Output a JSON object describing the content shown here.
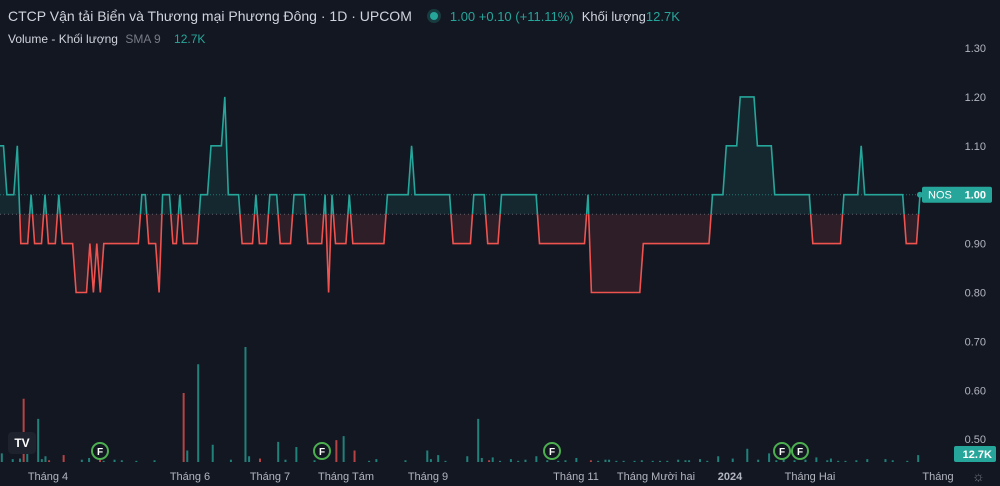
{
  "header": {
    "title": "CTCP Vận tải Biển và Thương mại Phương Đông · 1D · UPCOM",
    "price_change": "1.00 +0.10 (+11.11%)",
    "volume_label": "Khối lượng",
    "volume_value": "12.7K"
  },
  "volume_legend": {
    "name": "Volume - Khối lượng",
    "sma": "SMA 9",
    "value": "12.7K"
  },
  "price_tag": {
    "symbol": "NOS",
    "value": "1.00"
  },
  "volume_tag": "12.7K",
  "logo_text": "TV",
  "colors": {
    "up": "#26a69a",
    "down": "#ef5350",
    "background": "#131722",
    "grid": "#1e222d"
  },
  "chart_data": {
    "type": "line",
    "baseline": 0.96,
    "yticks": [
      "1.30",
      "1.20",
      "1.10",
      "1.00",
      "0.90",
      "0.80",
      "0.70",
      "0.60",
      "0.50"
    ],
    "ylim": [
      0.48,
      1.31
    ],
    "xlabels": [
      "Tháng 4",
      "Tháng 6",
      "Tháng 7",
      "Tháng Tám",
      "Tháng 9",
      "Tháng 11",
      "Tháng Mười hai",
      "2024",
      "Tháng Hai",
      "Tháng"
    ],
    "price": [
      1.1,
      1.1,
      1.0,
      1.0,
      1.0,
      1.1,
      0.9,
      0.9,
      0.9,
      1.0,
      0.9,
      0.9,
      0.9,
      1.0,
      0.9,
      0.9,
      0.9,
      1.0,
      0.9,
      0.9,
      0.9,
      0.9,
      0.8,
      0.8,
      0.8,
      0.8,
      0.9,
      0.8,
      0.9,
      0.8,
      0.9,
      0.9,
      0.9,
      0.9,
      0.9,
      0.9,
      0.9,
      0.9,
      0.9,
      0.9,
      0.9,
      1.0,
      1.0,
      0.9,
      0.9,
      0.9,
      0.8,
      1.0,
      1.0,
      1.0,
      0.9,
      0.9,
      1.0,
      0.9,
      0.9,
      0.9,
      0.9,
      0.9,
      1.0,
      1.0,
      1.0,
      1.1,
      1.1,
      1.1,
      1.1,
      1.2,
      1.0,
      1.0,
      1.0,
      1.0,
      0.9,
      0.9,
      0.9,
      0.9,
      1.0,
      0.9,
      0.9,
      0.9,
      1.0,
      1.0,
      1.0,
      0.9,
      0.9,
      0.9,
      0.9,
      1.0,
      1.0,
      1.0,
      1.0,
      0.9,
      0.9,
      0.9,
      0.9,
      0.9,
      1.0,
      0.8,
      1.0,
      0.9,
      0.9,
      0.9,
      0.9,
      1.0,
      0.9,
      0.9,
      0.9,
      0.9,
      0.9,
      0.9,
      0.9,
      0.9,
      0.9,
      0.9,
      1.0,
      1.0,
      1.0,
      1.0,
      1.0,
      1.0,
      1.0,
      1.1,
      1.0,
      1.0,
      1.0,
      1.0,
      1.0,
      1.0,
      1.0,
      1.0,
      1.0,
      1.0,
      1.0,
      0.9,
      0.9,
      0.9,
      0.9,
      0.9,
      0.9,
      1.0,
      1.0,
      1.0,
      1.0,
      0.9,
      0.9,
      0.9,
      0.9,
      1.0,
      1.0,
      1.0,
      1.0,
      1.0,
      1.0,
      1.0,
      1.0,
      1.0,
      1.0,
      1.0,
      0.9,
      0.9,
      0.9,
      0.9,
      0.9,
      0.9,
      0.9,
      0.9,
      0.9,
      0.9,
      0.9,
      0.9,
      0.9,
      0.9,
      1.0,
      0.8,
      0.8,
      0.8,
      0.8,
      0.8,
      0.8,
      0.8,
      0.8,
      0.8,
      0.8,
      0.8,
      0.8,
      0.8,
      0.8,
      0.8,
      0.9,
      0.9,
      0.9,
      0.9,
      0.9,
      0.9,
      0.9,
      0.9,
      0.9,
      0.9,
      0.9,
      0.9,
      0.9,
      0.9,
      0.9,
      0.9,
      0.9,
      0.9,
      0.9,
      0.9,
      1.0,
      1.0,
      1.0,
      1.0,
      1.1,
      1.1,
      1.1,
      1.1,
      1.2,
      1.2,
      1.2,
      1.2,
      1.2,
      1.1,
      1.1,
      1.1,
      1.1,
      1.1,
      1.0,
      1.0,
      1.0,
      1.0,
      1.0,
      1.0,
      1.0,
      1.0,
      1.0,
      1.0,
      1.0,
      0.9,
      0.9,
      0.9,
      0.9,
      0.9,
      0.9,
      0.9,
      0.9,
      0.9,
      1.0,
      1.0,
      1.0,
      1.0,
      1.0,
      1.1,
      1.0,
      1.0,
      1.0,
      1.0,
      1.0,
      1.0,
      1.0,
      1.0,
      1.0,
      1.0,
      1.0,
      1.0,
      0.9,
      0.9,
      0.9,
      0.9,
      1.0
    ],
    "volume": [
      1.5,
      0,
      0,
      0.5,
      0,
      0.6,
      11,
      2,
      0,
      0,
      7.5,
      0.5,
      1,
      0.3,
      0,
      0,
      0,
      1.2,
      0,
      0,
      0,
      0,
      0.4,
      0,
      0.7,
      0,
      0,
      0.8,
      0.2,
      0,
      0,
      0.4,
      0,
      0.3,
      0,
      0,
      0,
      0.2,
      0,
      0,
      0,
      0,
      0.3,
      0,
      0,
      0,
      0,
      0,
      0,
      0,
      12,
      2,
      0,
      0,
      17,
      0,
      0,
      0,
      3,
      0,
      0,
      0,
      0,
      0.4,
      0,
      0,
      0,
      20,
      1,
      0,
      0,
      0.6,
      0,
      0,
      0,
      0,
      3.5,
      0,
      0.4,
      0,
      0,
      2.6,
      0,
      0,
      0,
      0,
      0.3,
      0,
      0,
      0,
      0,
      0,
      3.8,
      0,
      4.5,
      0,
      0,
      2,
      0,
      0,
      0,
      0.2,
      0,
      0.5,
      0,
      0,
      0,
      0,
      0,
      0,
      0,
      0.3,
      0,
      0,
      0,
      0,
      0,
      2,
      0.5,
      0,
      1.2,
      0,
      0.2,
      0,
      0,
      0,
      0,
      0,
      1,
      0,
      0,
      7.5,
      0.7,
      0,
      0.3,
      0.8,
      0,
      0.2,
      0,
      0,
      0.5,
      0,
      0.2,
      0,
      0.4,
      0,
      0,
      1,
      0,
      0,
      0.3,
      0,
      0,
      0.2,
      0,
      0.3,
      0,
      0,
      0.7,
      0,
      0,
      0,
      0.3,
      0,
      0.2,
      0,
      0.4,
      0.4,
      0,
      0.2,
      0,
      0.2,
      0,
      0,
      0.2,
      0,
      0.3,
      0,
      0,
      0.2,
      0,
      0.2,
      0,
      0.2,
      0,
      0,
      0.4,
      0,
      0.3,
      0.3,
      0,
      0,
      0.5,
      0,
      0.2,
      0,
      0,
      1,
      0,
      0,
      0,
      0.6,
      0,
      0,
      0,
      2.3,
      0,
      0,
      0.4,
      0,
      0,
      1.5,
      0,
      0.3,
      0,
      0.8,
      0,
      0,
      0.3,
      0,
      0,
      0.4,
      0,
      0,
      0.8,
      0,
      0,
      0.3,
      0.6,
      0,
      0.2,
      0,
      0.2,
      0,
      0,
      0.3,
      0,
      0,
      0.5,
      0,
      0,
      0,
      0,
      0.5,
      0,
      0.3,
      0,
      0,
      0,
      0.2,
      0,
      0,
      1.2
    ]
  }
}
